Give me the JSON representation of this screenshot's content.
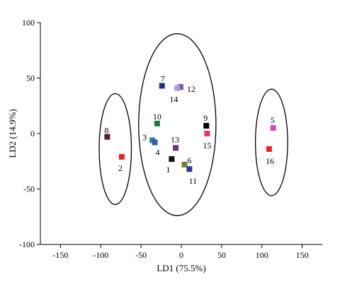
{
  "chart_data": {
    "type": "scatter",
    "xlabel": "LD1 (75.5%)",
    "ylabel": "LD2 (14.9%)",
    "xlim": [
      -175,
      175
    ],
    "ylim": [
      -100,
      100
    ],
    "xticks": [
      -150,
      -100,
      -50,
      0,
      50,
      100,
      150
    ],
    "yticks": [
      -100,
      -50,
      0,
      50,
      100
    ],
    "grid": false,
    "points": [
      {
        "label": "1",
        "x": -12,
        "y": -23,
        "color": "#111111"
      },
      {
        "label": "2",
        "x": -74,
        "y": -21,
        "color": "#e8252a"
      },
      {
        "label": "3",
        "x": -36,
        "y": -6,
        "color": "#2a8aa0"
      },
      {
        "label": "4",
        "x": -33,
        "y": -8,
        "color": "#2f5ea8"
      },
      {
        "label": "5",
        "x": 114,
        "y": 5,
        "color": "#c455b0"
      },
      {
        "label": "6",
        "x": 4,
        "y": -28,
        "color": "#7a7a33"
      },
      {
        "label": "7",
        "x": -24,
        "y": 43,
        "color": "#2b2f7a"
      },
      {
        "label": "8",
        "x": -92,
        "y": -3,
        "color": "#5a1a22"
      },
      {
        "label": "9",
        "x": 31,
        "y": 7,
        "color": "#000000"
      },
      {
        "label": "10",
        "x": -30,
        "y": 9,
        "color": "#1f7a45"
      },
      {
        "label": "11",
        "x": 10,
        "y": -32,
        "color": "#2b3a8f"
      },
      {
        "label": "12",
        "x": -1,
        "y": 42,
        "color": "#7a4fa8"
      },
      {
        "label": "13",
        "x": -7,
        "y": -13,
        "color": "#5b3a8a"
      },
      {
        "label": "14",
        "x": -5,
        "y": 41,
        "color": "#b09ad6"
      },
      {
        "label": "15",
        "x": 32,
        "y": 0,
        "color": "#e8307a"
      },
      {
        "label": "16",
        "x": 109,
        "y": -14,
        "color": "#e8252a"
      }
    ],
    "ellipses": [
      {
        "cx": -82,
        "cy": -14,
        "rx": 20,
        "ry": 50
      },
      {
        "cx": -5,
        "cy": 8,
        "rx": 48,
        "ry": 82
      },
      {
        "cx": 112,
        "cy": -8,
        "rx": 20,
        "ry": 48
      }
    ]
  }
}
